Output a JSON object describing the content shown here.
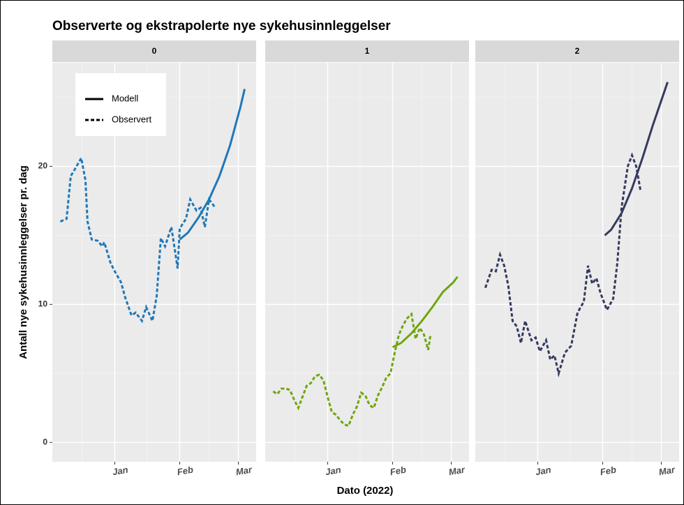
{
  "title": "Observerte og ekstrapolerte nye sykehusinnleggelser",
  "x_label": "Dato (2022)",
  "y_label": "Antall nye sykehusinnleggelser pr. dag",
  "legend_position": "top-left",
  "chart_data": [
    {
      "type": "line",
      "facet": "0",
      "xlim": [
        -29.8,
        67.5
      ],
      "ylim": [
        -1.4,
        27.5
      ],
      "xticks": [
        {
          "value": 0,
          "label": "Jan"
        },
        {
          "value": 31,
          "label": "Feb"
        },
        {
          "value": 59,
          "label": "Mar"
        }
      ],
      "yticks": [
        0,
        10,
        20
      ],
      "grid": true,
      "series": [
        {
          "name": "Modell",
          "linestyle": "solid",
          "color": "#1f78b8",
          "x": [
            31,
            35,
            40,
            45,
            50,
            55,
            60,
            62
          ],
          "values": [
            14.7,
            15.2,
            16.3,
            17.6,
            19.3,
            21.5,
            24.3,
            25.6
          ]
        },
        {
          "name": "Observert",
          "linestyle": "dashed",
          "color": "#1f78b8",
          "x": [
            -26,
            -23,
            -21,
            -19,
            -16,
            -14,
            -13,
            -11,
            -8,
            -6,
            -5,
            -2,
            0,
            3,
            5,
            8,
            10,
            13,
            15,
            18,
            20,
            22,
            24,
            27,
            30,
            31,
            34,
            36,
            39,
            41,
            43,
            45,
            48
          ],
          "values": [
            16.0,
            16.2,
            19.3,
            19.8,
            20.6,
            19.0,
            16.0,
            14.7,
            14.6,
            14.2,
            14.5,
            13.0,
            12.4,
            11.6,
            10.5,
            9.2,
            9.4,
            8.8,
            9.8,
            8.8,
            10.6,
            14.8,
            14.2,
            15.6,
            12.6,
            15.5,
            16.2,
            17.6,
            16.8,
            17.0,
            15.6,
            17.6,
            17.0
          ]
        }
      ]
    },
    {
      "type": "line",
      "facet": "1",
      "xlim": [
        -29.8,
        67.5
      ],
      "ylim": [
        -1.4,
        27.5
      ],
      "xticks": [
        {
          "value": 0,
          "label": "Jan"
        },
        {
          "value": 31,
          "label": "Feb"
        },
        {
          "value": 59,
          "label": "Mar"
        }
      ],
      "yticks": [
        0,
        10,
        20
      ],
      "grid": true,
      "series": [
        {
          "name": "Modell",
          "linestyle": "solid",
          "color": "#6fa60a",
          "x": [
            31,
            35,
            40,
            45,
            50,
            55,
            60,
            62
          ],
          "values": [
            6.9,
            7.2,
            7.9,
            8.8,
            9.8,
            10.9,
            11.6,
            12.0
          ]
        },
        {
          "name": "Observert",
          "linestyle": "dashed",
          "color": "#6fa60a",
          "x": [
            -26,
            -24,
            -22,
            -20,
            -18,
            -16,
            -14,
            -12,
            -10,
            -8,
            -6,
            -4,
            -2,
            0,
            2,
            4,
            6,
            8,
            10,
            12,
            14,
            16,
            18,
            20,
            22,
            24,
            26,
            28,
            30,
            32,
            34,
            36,
            38,
            40,
            42,
            44,
            46,
            48,
            49
          ],
          "values": [
            3.7,
            3.5,
            3.9,
            3.9,
            3.8,
            3.1,
            2.5,
            3.3,
            4.1,
            4.3,
            4.8,
            4.9,
            4.5,
            3.3,
            2.2,
            2.0,
            1.6,
            1.3,
            1.2,
            2.0,
            2.6,
            3.6,
            3.4,
            2.7,
            2.5,
            3.4,
            4.0,
            4.7,
            5.0,
            6.5,
            7.8,
            8.5,
            9.0,
            9.3,
            7.5,
            8.3,
            7.8,
            6.7,
            7.7
          ]
        }
      ]
    },
    {
      "type": "line",
      "facet": "2",
      "xlim": [
        -29.8,
        67.5
      ],
      "ylim": [
        -1.4,
        27.5
      ],
      "xticks": [
        {
          "value": 0,
          "label": "Jan"
        },
        {
          "value": 31,
          "label": "Feb"
        },
        {
          "value": 59,
          "label": "Mar"
        }
      ],
      "yticks": [
        0,
        10,
        20
      ],
      "grid": true,
      "series": [
        {
          "name": "Modell",
          "linestyle": "solid",
          "color": "#343a5e",
          "x": [
            32,
            35,
            40,
            45,
            50,
            55,
            62
          ],
          "values": [
            15.0,
            15.4,
            16.6,
            18.4,
            20.6,
            23.0,
            26.1
          ]
        },
        {
          "name": "Observert",
          "linestyle": "dashed",
          "color": "#343a5e",
          "x": [
            -25,
            -22,
            -20,
            -18,
            -16,
            -14,
            -12,
            -10,
            -8,
            -6,
            -3,
            -1,
            1,
            4,
            6,
            8,
            10,
            13,
            16,
            19,
            22,
            24,
            26,
            28,
            30,
            33,
            36,
            38,
            40,
            43,
            45,
            47,
            49
          ],
          "values": [
            11.2,
            12.5,
            12.4,
            13.6,
            12.8,
            11.3,
            8.8,
            8.4,
            7.2,
            8.8,
            7.4,
            7.6,
            6.6,
            7.4,
            6.0,
            6.3,
            5.0,
            6.5,
            7.0,
            9.4,
            10.2,
            12.8,
            11.5,
            11.9,
            10.8,
            9.6,
            10.4,
            13.0,
            17.0,
            20.0,
            20.8,
            20.0,
            18.3
          ]
        }
      ]
    }
  ]
}
